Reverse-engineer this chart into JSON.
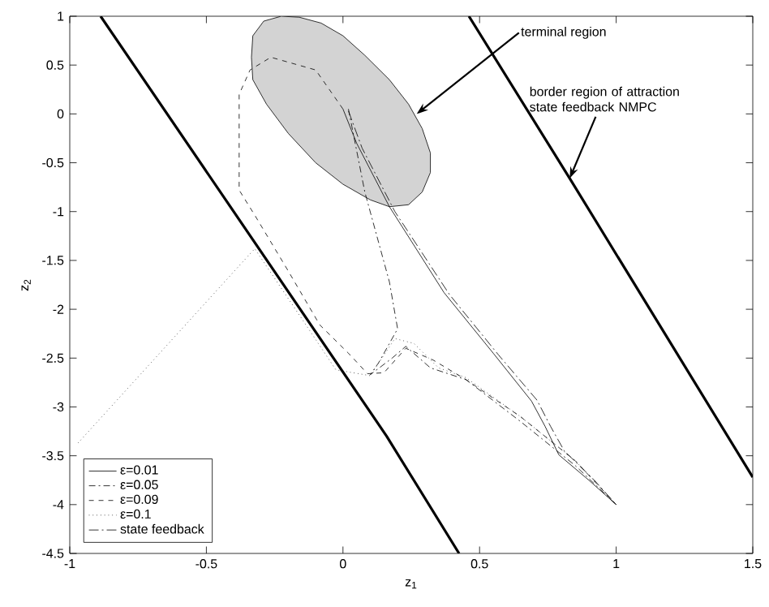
{
  "chart_data": {
    "type": "line",
    "xlabel": "z$_{1}$",
    "ylabel": "z$_{2}$",
    "xlim": [
      -1,
      1.5
    ],
    "ylim": [
      -4.5,
      1
    ],
    "xticks": [
      -1,
      -0.5,
      0,
      0.5,
      1,
      1.5
    ],
    "yticks": [
      -4.5,
      -4,
      -3.5,
      -3,
      -2.5,
      -2,
      -1.5,
      -1,
      -0.5,
      0,
      0.5,
      1
    ],
    "grid": false,
    "legend": "bottom left",
    "marker": "none",
    "series": [
      {
        "type": "area",
        "color": "#d3d3d3",
        "x": [
          -0.226,
          -0.16,
          -0.08,
          0.0,
          0.08,
          0.17,
          0.24,
          0.29,
          0.32,
          0.32,
          0.29,
          0.24,
          0.17,
          0.1,
          0.0,
          -0.1,
          -0.2,
          -0.28,
          -0.33,
          -0.335,
          -0.33,
          -0.29,
          -0.226
        ],
        "values": [
          1.0,
          0.99,
          0.93,
          0.8,
          0.6,
          0.35,
          0.1,
          -0.15,
          -0.4,
          -0.6,
          -0.8,
          -0.93,
          -0.95,
          -0.88,
          -0.72,
          -0.5,
          -0.2,
          0.1,
          0.35,
          0.58,
          0.8,
          0.95,
          1.0
        ]
      },
      {
        "type": "line",
        "color": "#000000",
        "line_style": "solid",
        "x": [
          -0.887,
          0.16,
          0.425
        ],
        "values": [
          1,
          -3.3,
          -4.5
        ]
      },
      {
        "type": "line",
        "color": "#000000",
        "line_style": "solid",
        "x": [
          0.461,
          0.83,
          1.5
        ],
        "values": [
          1,
          -0.66,
          -3.72
        ]
      },
      {
        "name": "ε=0.01",
        "color": "#000000",
        "line_style": "solid",
        "x": [
          0.0,
          0.05,
          0.17,
          0.37,
          0.55,
          0.69,
          0.74,
          0.79,
          0.9,
          1.0
        ],
        "values": [
          0.05,
          -0.3,
          -0.95,
          -1.83,
          -2.45,
          -2.94,
          -3.2,
          -3.49,
          -3.75,
          -4.0
        ]
      },
      {
        "name": "ε=0.05",
        "color": "#000000",
        "line_style": "dashdotted",
        "x": [
          0.02,
          0.08,
          0.17,
          0.2,
          0.13,
          0.1,
          0.18,
          0.23,
          0.32,
          0.45,
          0.65,
          0.85,
          1.0
        ],
        "values": [
          0.05,
          -0.8,
          -1.72,
          -2.2,
          -2.55,
          -2.67,
          -2.5,
          -2.38,
          -2.6,
          -2.72,
          -3.15,
          -3.6,
          -4.0
        ]
      },
      {
        "name": "ε=0.09",
        "color": "#000000",
        "line_style": "dashed",
        "x": [
          0.0,
          -0.1,
          -0.264,
          -0.34,
          -0.38,
          -0.38,
          -0.32,
          -0.2,
          -0.085,
          0.02,
          0.09,
          0.15,
          0.23,
          0.33,
          0.45,
          0.65,
          0.85,
          1.0
        ],
        "values": [
          0.05,
          0.45,
          0.58,
          0.45,
          0.2,
          -0.78,
          -1.05,
          -1.61,
          -2.16,
          -2.45,
          -2.66,
          -2.65,
          -2.4,
          -2.52,
          -2.72,
          -3.1,
          -3.55,
          -4.0
        ]
      },
      {
        "name": "ε=0.1",
        "color": "#000000",
        "line_style": "dotted",
        "x": [
          -0.97,
          -0.323,
          -0.15,
          -0.026,
          0.1,
          0.19,
          0.26,
          0.35,
          0.45,
          0.65,
          0.85,
          1.0
        ],
        "values": [
          -3.37,
          -1.38,
          -2.1,
          -2.62,
          -2.68,
          -2.3,
          -2.35,
          -2.6,
          -2.7,
          -3.1,
          -3.55,
          -4.0
        ]
      },
      {
        "name": "state feedback",
        "color": "#000000",
        "line_style": "dashdotdotted",
        "x": [
          0.02,
          0.07,
          0.19,
          0.39,
          0.57,
          0.71,
          0.76,
          0.81,
          0.92,
          1.0
        ],
        "values": [
          0.03,
          -0.35,
          -1.0,
          -1.85,
          -2.47,
          -2.93,
          -3.2,
          -3.45,
          -3.75,
          -4.0
        ]
      }
    ],
    "annotations": [
      {
        "text": "terminal region",
        "x": 0.27,
        "y": 0.0
      },
      {
        "text": "border region of attraction state feedback NMPC",
        "x": 0.83,
        "y": -0.66
      }
    ]
  }
}
